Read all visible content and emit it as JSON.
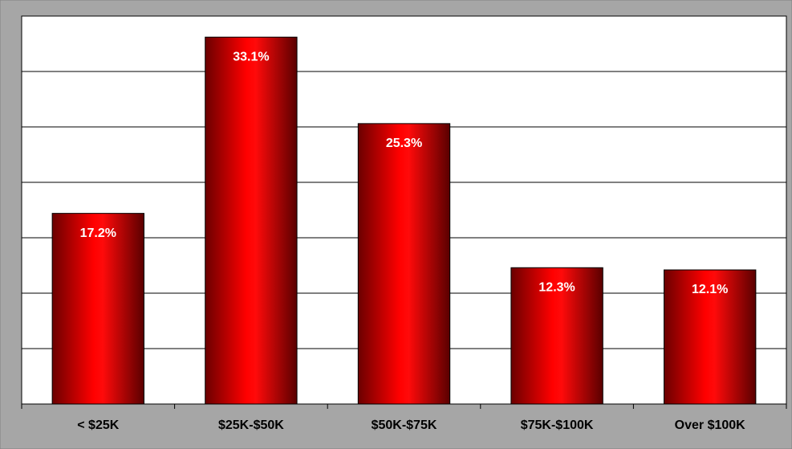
{
  "chart_data": {
    "type": "bar",
    "categories": [
      "< $25K",
      "$25K-$50K",
      "$50K-$75K",
      "$75K-$100K",
      "Over $100K"
    ],
    "values": [
      17.2,
      33.1,
      25.3,
      12.3,
      12.1
    ],
    "value_labels": [
      "17.2%",
      "33.1%",
      "25.3%",
      "12.3%",
      "12.1%"
    ],
    "color": "#ff0000",
    "ylim": [
      0,
      35
    ],
    "yticks": [
      0,
      5,
      10,
      15,
      20,
      25,
      30,
      35
    ],
    "grid": true
  }
}
